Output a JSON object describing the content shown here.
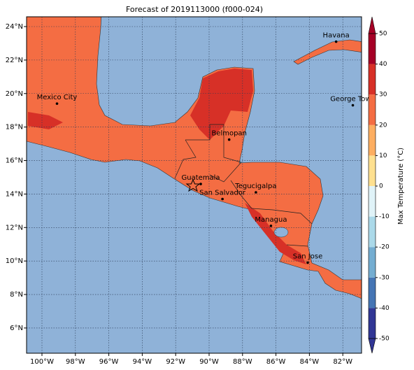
{
  "title": "Forecast of 2019113000 (f000-024)",
  "map": {
    "lon_ticks": [
      {
        "value": -100,
        "label": "100°W"
      },
      {
        "value": -98,
        "label": "98°W"
      },
      {
        "value": -96,
        "label": "96°W"
      },
      {
        "value": -94,
        "label": "94°W"
      },
      {
        "value": -92,
        "label": "92°W"
      },
      {
        "value": -90,
        "label": "90°W"
      },
      {
        "value": -88,
        "label": "88°W"
      },
      {
        "value": -86,
        "label": "86°W"
      },
      {
        "value": -84,
        "label": "84°W"
      },
      {
        "value": -82,
        "label": "82°W"
      }
    ],
    "lat_ticks": [
      {
        "value": 6,
        "label": "6°N"
      },
      {
        "value": 8,
        "label": "8°N"
      },
      {
        "value": 10,
        "label": "10°N"
      },
      {
        "value": 12,
        "label": "12°N"
      },
      {
        "value": 14,
        "label": "14°N"
      },
      {
        "value": 16,
        "label": "16°N"
      },
      {
        "value": 18,
        "label": "18°N"
      },
      {
        "value": 20,
        "label": "20°N"
      },
      {
        "value": 22,
        "label": "22°N"
      },
      {
        "value": 24,
        "label": "24°N"
      }
    ],
    "cities": [
      {
        "name": "Havana",
        "lon": -82.4,
        "lat": 23.1
      },
      {
        "name": "Mexico City",
        "lon": -99.1,
        "lat": 19.4
      },
      {
        "name": "George Town",
        "lon": -81.4,
        "lat": 19.3
      },
      {
        "name": "Belmopan",
        "lon": -88.8,
        "lat": 17.25
      },
      {
        "name": "Guatemala",
        "lon": -90.5,
        "lat": 14.6
      },
      {
        "name": "Tegucigalpa",
        "lon": -87.2,
        "lat": 14.1
      },
      {
        "name": "San Salvador",
        "lon": -89.2,
        "lat": 13.7
      },
      {
        "name": "Managua",
        "lon": -86.3,
        "lat": 12.1
      },
      {
        "name": "San Jose",
        "lon": -84.1,
        "lat": 9.9
      }
    ]
  },
  "colorbar": {
    "label": "Max Temperature (°C)",
    "ticks": [
      -50,
      -40,
      -30,
      -20,
      -10,
      0,
      10,
      20,
      30,
      40,
      50
    ],
    "colors": [
      "#313695",
      "#4575b4",
      "#74add1",
      "#abd9e9",
      "#e0f3f8",
      "#fee090",
      "#fdae61",
      "#f46d43",
      "#d73027",
      "#a50026"
    ]
  }
}
